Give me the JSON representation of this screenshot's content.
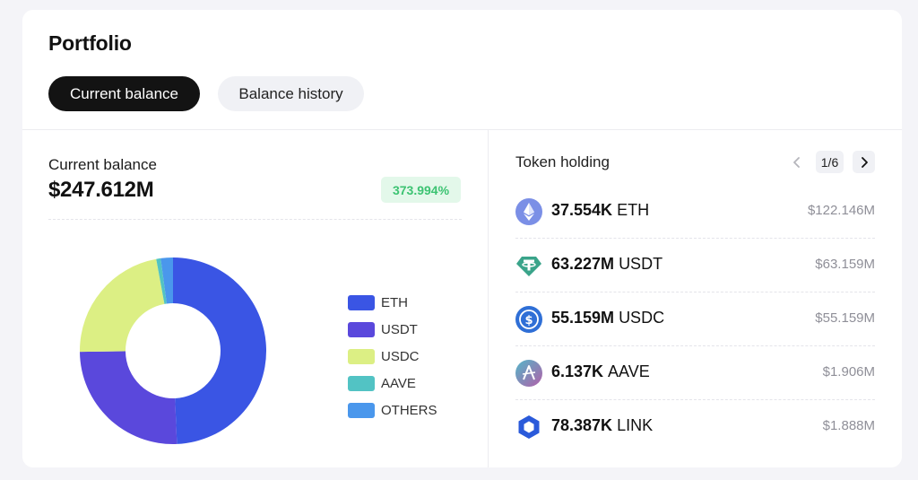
{
  "portfolio": {
    "title": "Portfolio",
    "tabs": [
      {
        "label": "Current balance",
        "active": true
      },
      {
        "label": "Balance history",
        "active": false
      }
    ]
  },
  "balance": {
    "label": "Current balance",
    "value": "$247.612M",
    "change": "373.994%"
  },
  "chart_data": {
    "type": "pie",
    "labels": [
      "ETH",
      "USDT",
      "USDC",
      "AAVE",
      "OTHERS"
    ],
    "values": [
      122.146,
      63.159,
      55.159,
      1.906,
      5.242
    ],
    "colors": [
      "#3a55e4",
      "#5a48dc",
      "#dcef84",
      "#52c3c4",
      "#4a97ec"
    ]
  },
  "legend": {
    "items": [
      {
        "label": "ETH",
        "color": "#3a55e4"
      },
      {
        "label": "USDT",
        "color": "#5a48dc"
      },
      {
        "label": "USDC",
        "color": "#dcef84"
      },
      {
        "label": "AAVE",
        "color": "#52c3c4"
      },
      {
        "label": "OTHERS",
        "color": "#4a97ec"
      }
    ]
  },
  "token_holding": {
    "title": "Token holding",
    "page": "1/6",
    "tokens": [
      {
        "amount": "37.554K",
        "symbol": "ETH",
        "usd": "$122.146M",
        "icon": "eth-icon"
      },
      {
        "amount": "63.227M",
        "symbol": "USDT",
        "usd": "$63.159M",
        "icon": "usdt-icon"
      },
      {
        "amount": "55.159M",
        "symbol": "USDC",
        "usd": "$55.159M",
        "icon": "usdc-icon"
      },
      {
        "amount": "6.137K",
        "symbol": "AAVE",
        "usd": "$1.906M",
        "icon": "aave-icon"
      },
      {
        "amount": "78.387K",
        "symbol": "LINK",
        "usd": "$1.888M",
        "icon": "link-icon"
      }
    ]
  }
}
